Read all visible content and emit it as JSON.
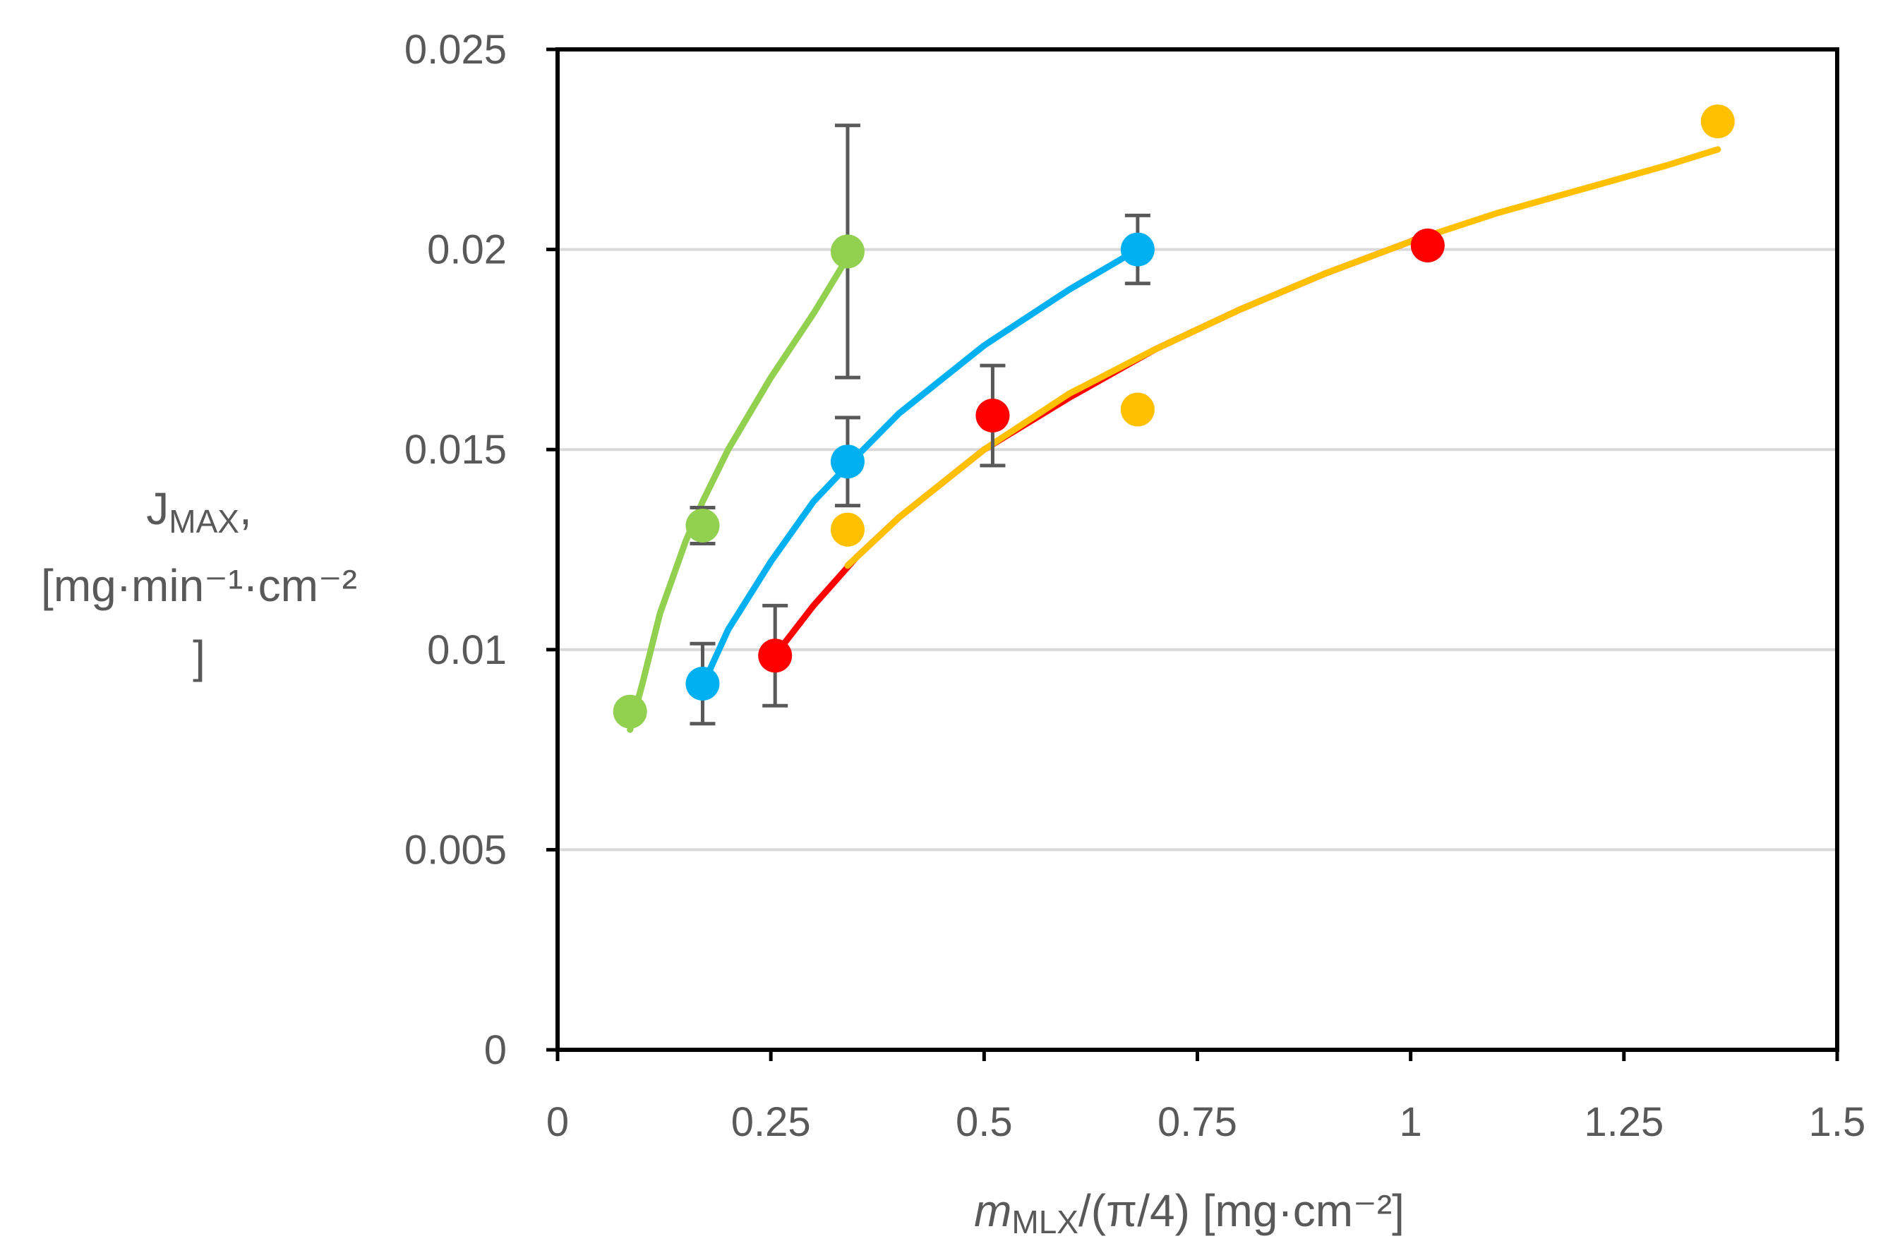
{
  "chart_data": {
    "type": "scatter",
    "title": "",
    "xlabel": {
      "italic": "m",
      "sub": "MLX",
      "rest": "/(π/4) [mg·cm⁻²]"
    },
    "ylabel": {
      "main": "J",
      "sub": "MAX",
      "suffix": ",",
      "line2": "[mg·min⁻¹·cm⁻²",
      "line3": "]"
    },
    "xlim": [
      0,
      1.5
    ],
    "ylim": [
      0,
      0.025
    ],
    "xticks": [
      0,
      0.25,
      0.5,
      0.75,
      1,
      1.25,
      1.5
    ],
    "xtick_labels": [
      "0",
      "0.25",
      "0.5",
      "0.75",
      "1",
      "1.25",
      "1.5"
    ],
    "yticks": [
      0,
      0.005,
      0.01,
      0.015,
      0.02,
      0.025
    ],
    "ytick_labels": [
      "0",
      "0.005",
      "0.01",
      "0.015",
      "0.02",
      "0.025"
    ],
    "grid": "horizontal",
    "legend": "none",
    "series": [
      {
        "name": "green",
        "color": "#92d050",
        "points": [
          {
            "x": 0.085,
            "y": 0.00845,
            "err": null
          },
          {
            "x": 0.17,
            "y": 0.0131,
            "err": 0.00045
          },
          {
            "x": 0.34,
            "y": 0.01995,
            "err": 0.00315
          }
        ],
        "fit": [
          [
            0.085,
            0.008
          ],
          [
            0.1,
            0.0092
          ],
          [
            0.12,
            0.0109
          ],
          [
            0.15,
            0.0127
          ],
          [
            0.17,
            0.0137
          ],
          [
            0.2,
            0.015
          ],
          [
            0.25,
            0.0168
          ],
          [
            0.3,
            0.0184
          ],
          [
            0.34,
            0.0198
          ]
        ]
      },
      {
        "name": "blue",
        "color": "#00b0f0",
        "points": [
          {
            "x": 0.17,
            "y": 0.00915,
            "err": 0.001
          },
          {
            "x": 0.34,
            "y": 0.0147,
            "err": 0.0011
          },
          {
            "x": 0.68,
            "y": 0.02,
            "err": 0.00085
          }
        ],
        "fit": [
          [
            0.17,
            0.0091
          ],
          [
            0.2,
            0.0105
          ],
          [
            0.25,
            0.0122
          ],
          [
            0.3,
            0.0137
          ],
          [
            0.34,
            0.0146
          ],
          [
            0.4,
            0.0159
          ],
          [
            0.5,
            0.0176
          ],
          [
            0.6,
            0.019
          ],
          [
            0.68,
            0.02
          ]
        ]
      },
      {
        "name": "red",
        "color": "#ff0000",
        "points": [
          {
            "x": 0.255,
            "y": 0.00985,
            "err": 0.00125
          },
          {
            "x": 0.51,
            "y": 0.01585,
            "err": 0.00125
          },
          {
            "x": 1.02,
            "y": 0.0201,
            "err": 0.00025
          }
        ],
        "fit": [
          [
            0.26,
            0.01
          ],
          [
            0.3,
            0.0111
          ],
          [
            0.35,
            0.0123
          ],
          [
            0.4,
            0.0133
          ],
          [
            0.5,
            0.015
          ],
          [
            0.6,
            0.0163
          ],
          [
            0.7,
            0.0175
          ],
          [
            0.8,
            0.0185
          ],
          [
            0.9,
            0.0194
          ],
          [
            1.0,
            0.0202
          ],
          [
            1.02,
            0.0204
          ]
        ]
      },
      {
        "name": "orange",
        "color": "#ffc000",
        "points": [
          {
            "x": 0.34,
            "y": 0.013,
            "err": null
          },
          {
            "x": 0.68,
            "y": 0.016,
            "err": null
          },
          {
            "x": 1.36,
            "y": 0.0232,
            "err": null
          }
        ],
        "fit": [
          [
            0.34,
            0.0121
          ],
          [
            0.4,
            0.0133
          ],
          [
            0.5,
            0.015
          ],
          [
            0.6,
            0.0164
          ],
          [
            0.7,
            0.0175
          ],
          [
            0.8,
            0.0185
          ],
          [
            0.9,
            0.0194
          ],
          [
            1.0,
            0.0202
          ],
          [
            1.1,
            0.0209
          ],
          [
            1.2,
            0.0215
          ],
          [
            1.3,
            0.0221
          ],
          [
            1.36,
            0.0225
          ]
        ]
      }
    ]
  }
}
